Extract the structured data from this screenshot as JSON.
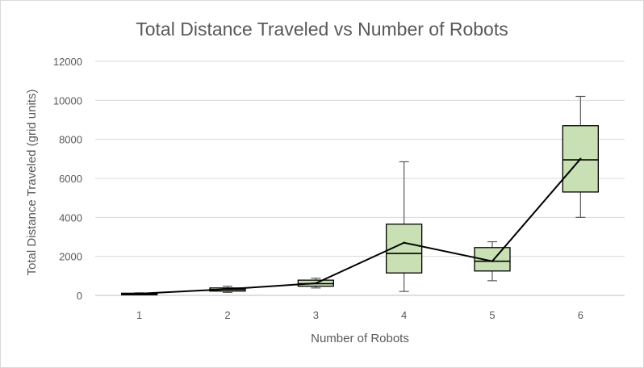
{
  "chart_data": {
    "type": "box",
    "title": "Total Distance Traveled vs Number of Robots",
    "xlabel": "Number of Robots",
    "ylabel": "Total Distance Traveled (grid units)",
    "ylim": [
      0,
      12000
    ],
    "yticks": [
      0,
      2000,
      4000,
      6000,
      8000,
      10000,
      12000
    ],
    "categories": [
      "1",
      "2",
      "3",
      "4",
      "5",
      "6"
    ],
    "boxes": [
      {
        "min": 40,
        "q1": 60,
        "median": 80,
        "q3": 110,
        "max": 130
      },
      {
        "min": 150,
        "q1": 220,
        "median": 300,
        "q3": 380,
        "max": 470
      },
      {
        "min": 380,
        "q1": 470,
        "median": 600,
        "q3": 780,
        "max": 880
      },
      {
        "min": 200,
        "q1": 1150,
        "median": 2150,
        "q3": 3650,
        "max": 6850
      },
      {
        "min": 750,
        "q1": 1250,
        "median": 1750,
        "q3": 2450,
        "max": 2750
      },
      {
        "min": 4000,
        "q1": 5300,
        "median": 6950,
        "q3": 8700,
        "max": 10200
      }
    ],
    "mean_line": [
      90,
      320,
      620,
      2700,
      1750,
      7000
    ],
    "box_fill": "#c8e0b4",
    "grid": true,
    "legend": "none"
  }
}
